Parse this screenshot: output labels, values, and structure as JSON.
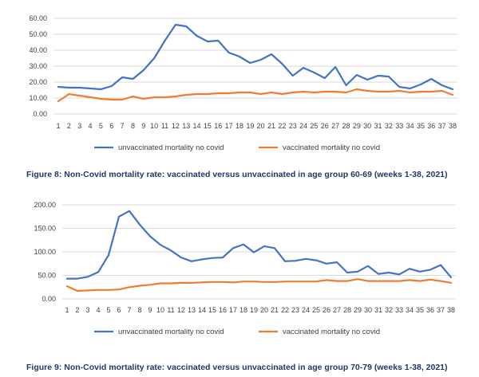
{
  "chart_data": [
    {
      "type": "line",
      "title": "",
      "xlabel": "",
      "ylabel": "",
      "ylim": [
        0,
        60
      ],
      "yticks": [
        "0.00",
        "10.00",
        "20.00",
        "30.00",
        "40.00",
        "50.00",
        "60.00"
      ],
      "ytick_values": [
        0,
        10,
        20,
        30,
        40,
        50,
        60
      ],
      "x": [
        "1",
        "2",
        "3",
        "4",
        "5",
        "6",
        "7",
        "8",
        "9",
        "10",
        "11",
        "12",
        "13",
        "14",
        "15",
        "16",
        "17",
        "18",
        "19",
        "20",
        "21",
        "22",
        "23",
        "24",
        "25",
        "26",
        "27",
        "28",
        "29",
        "30",
        "31",
        "32",
        "33",
        "34",
        "35",
        "36",
        "37",
        "38"
      ],
      "grid": true,
      "legend": "bottom",
      "series": [
        {
          "name": "unvaccinated mortality no covid",
          "color": "#4472c4",
          "values": [
            17,
            16.5,
            16.5,
            16,
            15.5,
            17.5,
            23,
            22,
            27.5,
            35,
            46,
            56,
            55,
            49,
            45.5,
            46,
            38.5,
            36,
            32,
            34,
            37.5,
            31.5,
            24,
            29,
            26,
            22.5,
            29.5,
            18,
            24.5,
            21.5,
            24,
            23.5,
            17,
            16,
            18.5,
            22,
            18,
            15.5
          ]
        },
        {
          "name": "vaccinated mortality no covid",
          "color": "#ed7d31",
          "values": [
            8,
            12.5,
            11.5,
            10.5,
            9.5,
            9,
            9,
            11,
            9.5,
            10.5,
            10.5,
            11,
            12,
            12.5,
            12.5,
            13,
            13,
            13.5,
            13.5,
            12.5,
            13.5,
            12.5,
            13.5,
            14,
            13.5,
            14,
            14,
            13.5,
            15.5,
            14.5,
            14,
            14,
            14.5,
            13.5,
            14,
            14,
            14.5,
            12
          ]
        }
      ],
      "caption": "Figure 8: Non-Covid mortality rate: vaccinated versus unvaccinated in age group 60-69 (weeks 1-38, 2021)"
    },
    {
      "type": "line",
      "title": "",
      "xlabel": "",
      "ylabel": "",
      "ylim": [
        0,
        200
      ],
      "yticks": [
        "0.00",
        "50.00",
        "100.00",
        "150.00",
        "200.00"
      ],
      "ytick_values": [
        0,
        50,
        100,
        150,
        200
      ],
      "x": [
        "1",
        "2",
        "3",
        "4",
        "5",
        "6",
        "7",
        "8",
        "9",
        "10",
        "11",
        "12",
        "13",
        "14",
        "15",
        "16",
        "17",
        "18",
        "19",
        "20",
        "21",
        "22",
        "23",
        "24",
        "25",
        "26",
        "27",
        "28",
        "29",
        "30",
        "31",
        "32",
        "33",
        "34",
        "35",
        "36",
        "37",
        "38"
      ],
      "grid": true,
      "legend": "bottom",
      "series": [
        {
          "name": "unvaccinated mortality no covid",
          "color": "#4472c4",
          "values": [
            43,
            43,
            47,
            57,
            93,
            175,
            187,
            158,
            133,
            115,
            103,
            88,
            80,
            84,
            87,
            88,
            108,
            116,
            99,
            112,
            108,
            80,
            81,
            85,
            82,
            75,
            78,
            56,
            58,
            70,
            53,
            56,
            52,
            64,
            58,
            62,
            72,
            46
          ]
        },
        {
          "name": "vaccinated mortality no covid",
          "color": "#ed7d31",
          "values": [
            27,
            17,
            18,
            19,
            19,
            20,
            25,
            28,
            30,
            33,
            33,
            34,
            34,
            35,
            36,
            36,
            35,
            37,
            37,
            36,
            36,
            37,
            37,
            37,
            37,
            40,
            38,
            38,
            42,
            38,
            38,
            38,
            38,
            40,
            38,
            41,
            38,
            34
          ]
        }
      ],
      "caption": "Figure 9: Non-Covid mortality rate: vaccinated versus unvaccinated in age group 70-79 (weeks 1-38, 2021)"
    }
  ]
}
